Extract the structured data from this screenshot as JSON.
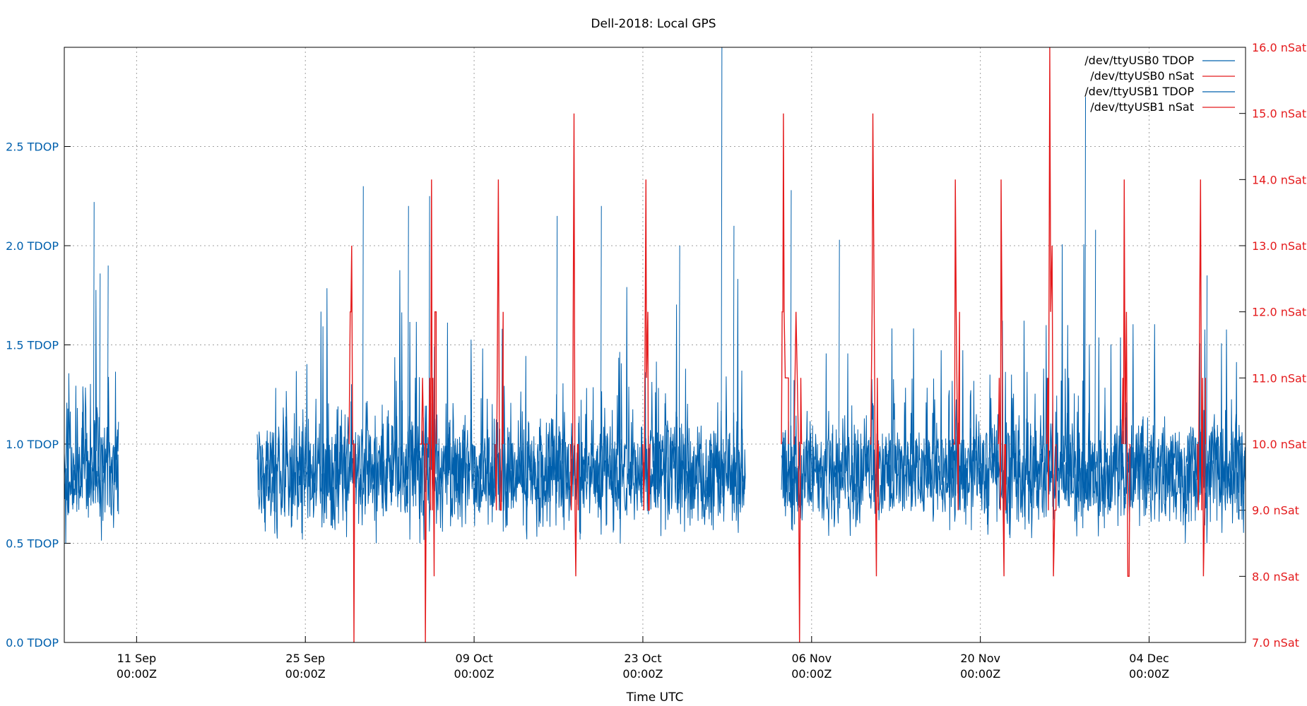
{
  "chart_data": {
    "type": "line",
    "title": "Dell-2018: Local GPS",
    "xlabel": "Time UTC",
    "x_range": [
      "2018-09-05T00:00:00Z",
      "2018-12-12T00:00:00Z"
    ],
    "x_ticks": [
      {
        "date": "2018-09-11",
        "label1": "11 Sep",
        "label2": "00:00Z"
      },
      {
        "date": "2018-09-25",
        "label1": "25 Sep",
        "label2": "00:00Z"
      },
      {
        "date": "2018-10-09",
        "label1": "09 Oct",
        "label2": "00:00Z"
      },
      {
        "date": "2018-10-23",
        "label1": "23 Oct",
        "label2": "00:00Z"
      },
      {
        "date": "2018-11-06",
        "label1": "06 Nov",
        "label2": "00:00Z"
      },
      {
        "date": "2018-11-20",
        "label1": "20 Nov",
        "label2": "00:00Z"
      },
      {
        "date": "2018-12-04",
        "label1": "04 Dec",
        "label2": "00:00Z"
      }
    ],
    "y_left": {
      "range": [
        0,
        3.0
      ],
      "ticks": [
        0.0,
        0.5,
        1.0,
        1.5,
        2.0,
        2.5
      ],
      "tick_labels": [
        "0.0 TDOP",
        "0.5 TDOP",
        "1.0 TDOP",
        "1.5 TDOP",
        "2.0 TDOP",
        "2.5 TDOP"
      ],
      "color": "#0060ad"
    },
    "y_right": {
      "range": [
        7.0,
        16.0
      ],
      "ticks": [
        7,
        8,
        9,
        10,
        11,
        12,
        13,
        14,
        15,
        16
      ],
      "tick_labels": [
        "7.0 nSat",
        "8.0 nSat",
        "9.0 nSat",
        "10.0 nSat",
        "11.0 nSat",
        "12.0 nSat",
        "13.0 nSat",
        "14.0 nSat",
        "15.0 nSat",
        "16.0 nSat"
      ],
      "color": "#e41a1c"
    },
    "grid": true,
    "legend_position": "top-right",
    "series": [
      {
        "name": "/dev/ttyUSB0 TDOP",
        "axis": "left",
        "color": "#0060ad",
        "style": "noisy-line",
        "typical_range": [
          0.55,
          1.3
        ],
        "mean": 0.85,
        "coverage": [
          [
            "2018-09-05T00:00:00Z",
            "2018-09-09T12:00:00Z"
          ],
          [
            "2018-09-21T00:00:00Z",
            "2018-10-31T12:00:00Z"
          ],
          [
            "2018-11-03T12:00:00Z",
            "2018-12-12T00:00:00Z"
          ]
        ],
        "peaks": [
          {
            "t": "2018-09-07T10:00:00Z",
            "y": 2.22
          },
          {
            "t": "2018-09-07T22:00:00Z",
            "y": 1.86
          },
          {
            "t": "2018-09-08T14:00:00Z",
            "y": 1.9
          },
          {
            "t": "2018-09-29T18:00:00Z",
            "y": 2.3
          },
          {
            "t": "2018-10-03T12:00:00Z",
            "y": 2.2
          },
          {
            "t": "2018-10-05T06:00:00Z",
            "y": 2.25
          },
          {
            "t": "2018-10-15T20:00:00Z",
            "y": 2.15
          },
          {
            "t": "2018-10-19T12:00:00Z",
            "y": 2.2
          },
          {
            "t": "2018-10-26T00:00:00Z",
            "y": 2.0
          },
          {
            "t": "2018-10-29T12:00:00Z",
            "y": 3.0
          },
          {
            "t": "2018-10-30T12:00:00Z",
            "y": 2.1
          },
          {
            "t": "2018-11-04T06:00:00Z",
            "y": 2.28
          },
          {
            "t": "2018-11-08T06:00:00Z",
            "y": 2.03
          },
          {
            "t": "2018-11-28T16:00:00Z",
            "y": 2.75
          },
          {
            "t": "2018-11-29T12:00:00Z",
            "y": 2.08
          },
          {
            "t": "2018-12-08T18:00:00Z",
            "y": 1.85
          }
        ]
      },
      {
        "name": "/dev/ttyUSB0 nSat",
        "axis": "right",
        "color": "#e41a1c",
        "style": "step-line",
        "base_value": 10,
        "coverage": [
          [
            "2018-09-28T06:00:00Z",
            "2018-10-31T12:00:00Z"
          ],
          [
            "2018-11-03T12:00:00Z",
            "2018-12-12T00:00:00Z"
          ]
        ],
        "bursts": [
          {
            "t": "2018-09-28T15:00:00Z",
            "min": 7,
            "max": 13
          },
          {
            "t": "2018-10-04T12:00:00Z",
            "min": 7,
            "max": 11
          },
          {
            "t": "2018-10-05T06:00:00Z",
            "min": 8,
            "max": 14
          },
          {
            "t": "2018-10-10T18:00:00Z",
            "min": 9,
            "max": 14
          },
          {
            "t": "2018-10-17T00:00:00Z",
            "min": 9,
            "max": 15
          },
          {
            "t": "2018-10-23T00:00:00Z",
            "min": 9,
            "max": 14
          },
          {
            "t": "2018-11-03T12:00:00Z",
            "min": 11,
            "max": 15
          },
          {
            "t": "2018-11-04T12:00:00Z",
            "min": 7,
            "max": 12
          },
          {
            "t": "2018-11-10T20:00:00Z",
            "min": 8,
            "max": 15
          },
          {
            "t": "2018-11-17T18:00:00Z",
            "min": 9,
            "max": 14
          },
          {
            "t": "2018-11-21T12:00:00Z",
            "min": 8,
            "max": 14
          },
          {
            "t": "2018-11-25T12:00:00Z",
            "min": 8,
            "max": 16
          },
          {
            "t": "2018-12-01T18:00:00Z",
            "min": 8,
            "max": 14
          },
          {
            "t": "2018-12-08T00:00:00Z",
            "min": 8,
            "max": 14
          }
        ]
      },
      {
        "name": "/dev/ttyUSB1 TDOP",
        "axis": "left",
        "color": "#0060ad",
        "style": "noisy-line",
        "typical_range": [
          0.55,
          1.3
        ],
        "mean": 0.85,
        "coverage": [
          [
            "2018-09-05T00:00:00Z",
            "2018-09-09T12:00:00Z"
          ],
          [
            "2018-09-21T00:00:00Z",
            "2018-10-31T12:00:00Z"
          ],
          [
            "2018-11-03T12:00:00Z",
            "2018-12-12T00:00:00Z"
          ]
        ]
      },
      {
        "name": "/dev/ttyUSB1 nSat",
        "axis": "right",
        "color": "#e41a1c",
        "style": "step-line",
        "base_value": 10,
        "coverage": [
          [
            "2018-09-28T06:00:00Z",
            "2018-10-31T12:00:00Z"
          ],
          [
            "2018-11-03T12:00:00Z",
            "2018-12-12T00:00:00Z"
          ]
        ]
      }
    ]
  }
}
